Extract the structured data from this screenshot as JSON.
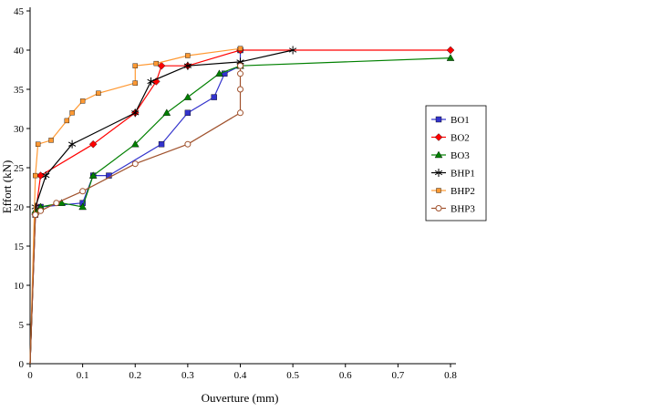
{
  "chart_data": {
    "type": "line",
    "title": "",
    "xlabel": "Ouverture (mm)",
    "ylabel": "Effort (kN)",
    "xlim": [
      0,
      0.8
    ],
    "ylim": [
      0,
      45
    ],
    "xticks": [
      "0",
      "0.1",
      "0.2",
      "0.3",
      "0.4",
      "0.5",
      "0.6",
      "0.7",
      "0.8"
    ],
    "yticks": [
      "0",
      "5",
      "10",
      "15",
      "20",
      "25",
      "30",
      "35",
      "40",
      "45"
    ],
    "grid": false,
    "legend_position": "right",
    "background": "#ffffff",
    "series": [
      {
        "name": "BO1",
        "color": "#3333CC",
        "marker": "square",
        "points": [
          [
            0,
            0
          ],
          [
            0.01,
            19
          ],
          [
            0.02,
            20
          ],
          [
            0.1,
            20.5
          ],
          [
            0.12,
            24
          ],
          [
            0.15,
            24
          ],
          [
            0.25,
            28
          ],
          [
            0.3,
            32
          ],
          [
            0.35,
            34
          ],
          [
            0.37,
            37
          ],
          [
            0.4,
            38
          ],
          [
            0.4,
            40
          ]
        ]
      },
      {
        "name": "BO2",
        "color": "#FF0000",
        "marker": "diamond",
        "points": [
          [
            0,
            0
          ],
          [
            0.01,
            19
          ],
          [
            0.02,
            24
          ],
          [
            0.12,
            28
          ],
          [
            0.2,
            32
          ],
          [
            0.24,
            36
          ],
          [
            0.25,
            38
          ],
          [
            0.3,
            38
          ],
          [
            0.4,
            40
          ],
          [
            0.8,
            40
          ]
        ]
      },
      {
        "name": "BO3",
        "color": "#008000",
        "marker": "triangle",
        "points": [
          [
            0,
            0
          ],
          [
            0.01,
            19.5
          ],
          [
            0.02,
            20
          ],
          [
            0.06,
            20.5
          ],
          [
            0.1,
            20
          ],
          [
            0.12,
            24
          ],
          [
            0.2,
            28
          ],
          [
            0.26,
            32
          ],
          [
            0.3,
            34
          ],
          [
            0.36,
            37
          ],
          [
            0.4,
            38
          ],
          [
            0.8,
            39
          ]
        ]
      },
      {
        "name": "BHP1",
        "color": "#000000",
        "marker": "asterisk",
        "points": [
          [
            0,
            0
          ],
          [
            0.01,
            20
          ],
          [
            0.03,
            24
          ],
          [
            0.08,
            28
          ],
          [
            0.2,
            32
          ],
          [
            0.23,
            36
          ],
          [
            0.3,
            38
          ],
          [
            0.4,
            38.5
          ],
          [
            0.5,
            40
          ]
        ]
      },
      {
        "name": "BHP2",
        "color": "#FF9933",
        "marker": "square-small",
        "points": [
          [
            0,
            0
          ],
          [
            0.01,
            24
          ],
          [
            0.015,
            28
          ],
          [
            0.04,
            28.5
          ],
          [
            0.07,
            31
          ],
          [
            0.08,
            32
          ],
          [
            0.1,
            33.5
          ],
          [
            0.13,
            34.5
          ],
          [
            0.2,
            35.8
          ],
          [
            0.2,
            38
          ],
          [
            0.24,
            38.3
          ],
          [
            0.3,
            39.3
          ],
          [
            0.4,
            40.2
          ]
        ]
      },
      {
        "name": "BHP3",
        "color": "#A0522D",
        "marker": "circle-open",
        "points": [
          [
            0,
            0
          ],
          [
            0.01,
            19
          ],
          [
            0.02,
            19.5
          ],
          [
            0.05,
            20.5
          ],
          [
            0.1,
            22
          ],
          [
            0.2,
            25.5
          ],
          [
            0.3,
            28
          ],
          [
            0.4,
            32
          ],
          [
            0.4,
            35
          ],
          [
            0.4,
            37
          ],
          [
            0.4,
            38
          ]
        ]
      }
    ]
  }
}
